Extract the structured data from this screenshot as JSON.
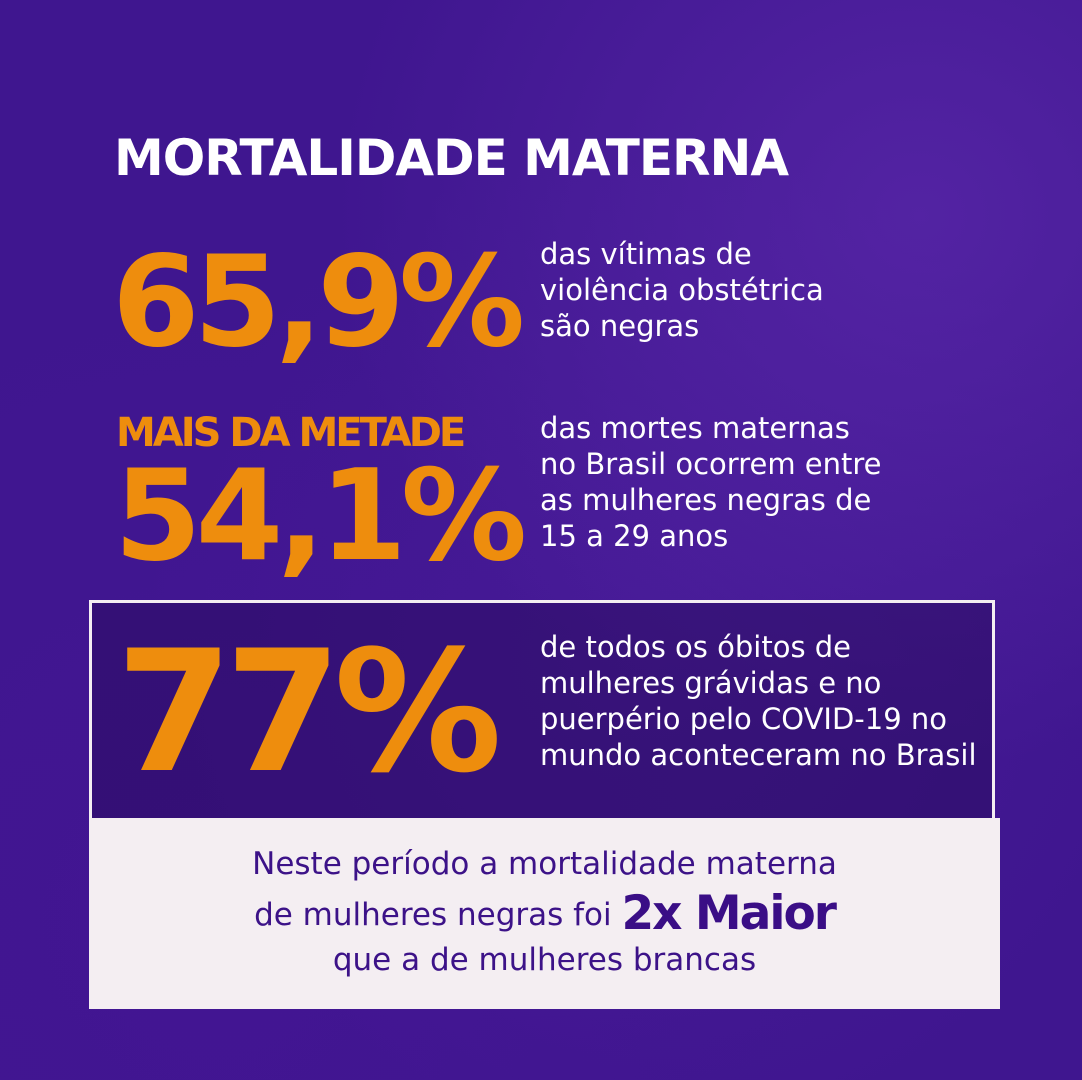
{
  "title": "MORTALIDADE MATERNA",
  "stats": [
    {
      "value": "65,9%",
      "description": [
        "das vítimas de",
        "violência obstétrica",
        "são negras"
      ]
    },
    {
      "prefix": "MAIS DA METADE",
      "value": "54,1%",
      "description": [
        "das mortes maternas",
        "no Brasil ocorrem entre",
        "as mulheres negras de",
        "15 a 29 anos"
      ]
    },
    {
      "value": "77%",
      "description": [
        "de todos os óbitos de",
        "mulheres grávidas e no",
        "puerpério pelo COVID-19 no",
        "mundo aconteceram no Brasil"
      ]
    }
  ],
  "footer": {
    "line1": "Neste período a mortalidade materna",
    "line2_before": "de mulheres negras foi ",
    "line2_emphasis": "2x Maior",
    "line3": "que a de mulheres brancas"
  },
  "colors": {
    "background": "#3f168f",
    "accent": "#ee8d0d",
    "panel": "#f4eef2",
    "panel_text": "#3c1288"
  }
}
